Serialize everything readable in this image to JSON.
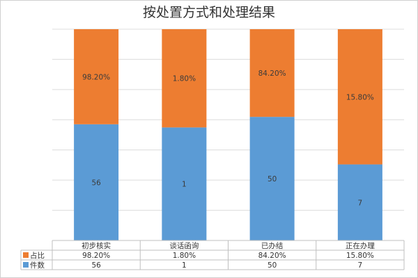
{
  "chart_data": {
    "type": "bar",
    "stacked": true,
    "percent_stacked": true,
    "title": "按处置方式和处理结果",
    "categories": [
      "初步核实",
      "谈话函询",
      "已办结",
      "正在办理"
    ],
    "series": [
      {
        "name": "件数",
        "color": "#5b9bd5",
        "values": [
          56,
          1,
          50,
          7
        ],
        "labels": [
          "56",
          "1",
          "50",
          "7"
        ],
        "display_share": [
          0.55,
          0.535,
          0.585,
          0.36
        ]
      },
      {
        "name": "占比",
        "color": "#ed7d31",
        "values": [
          98.2,
          1.8,
          84.2,
          15.8
        ],
        "labels": [
          "98.20%",
          "1.80%",
          "84.20%",
          "15.80%"
        ],
        "display_share": [
          0.45,
          0.465,
          0.415,
          0.64
        ]
      }
    ],
    "data_table": true,
    "legend_placement": "data-table",
    "gridlines": true
  }
}
